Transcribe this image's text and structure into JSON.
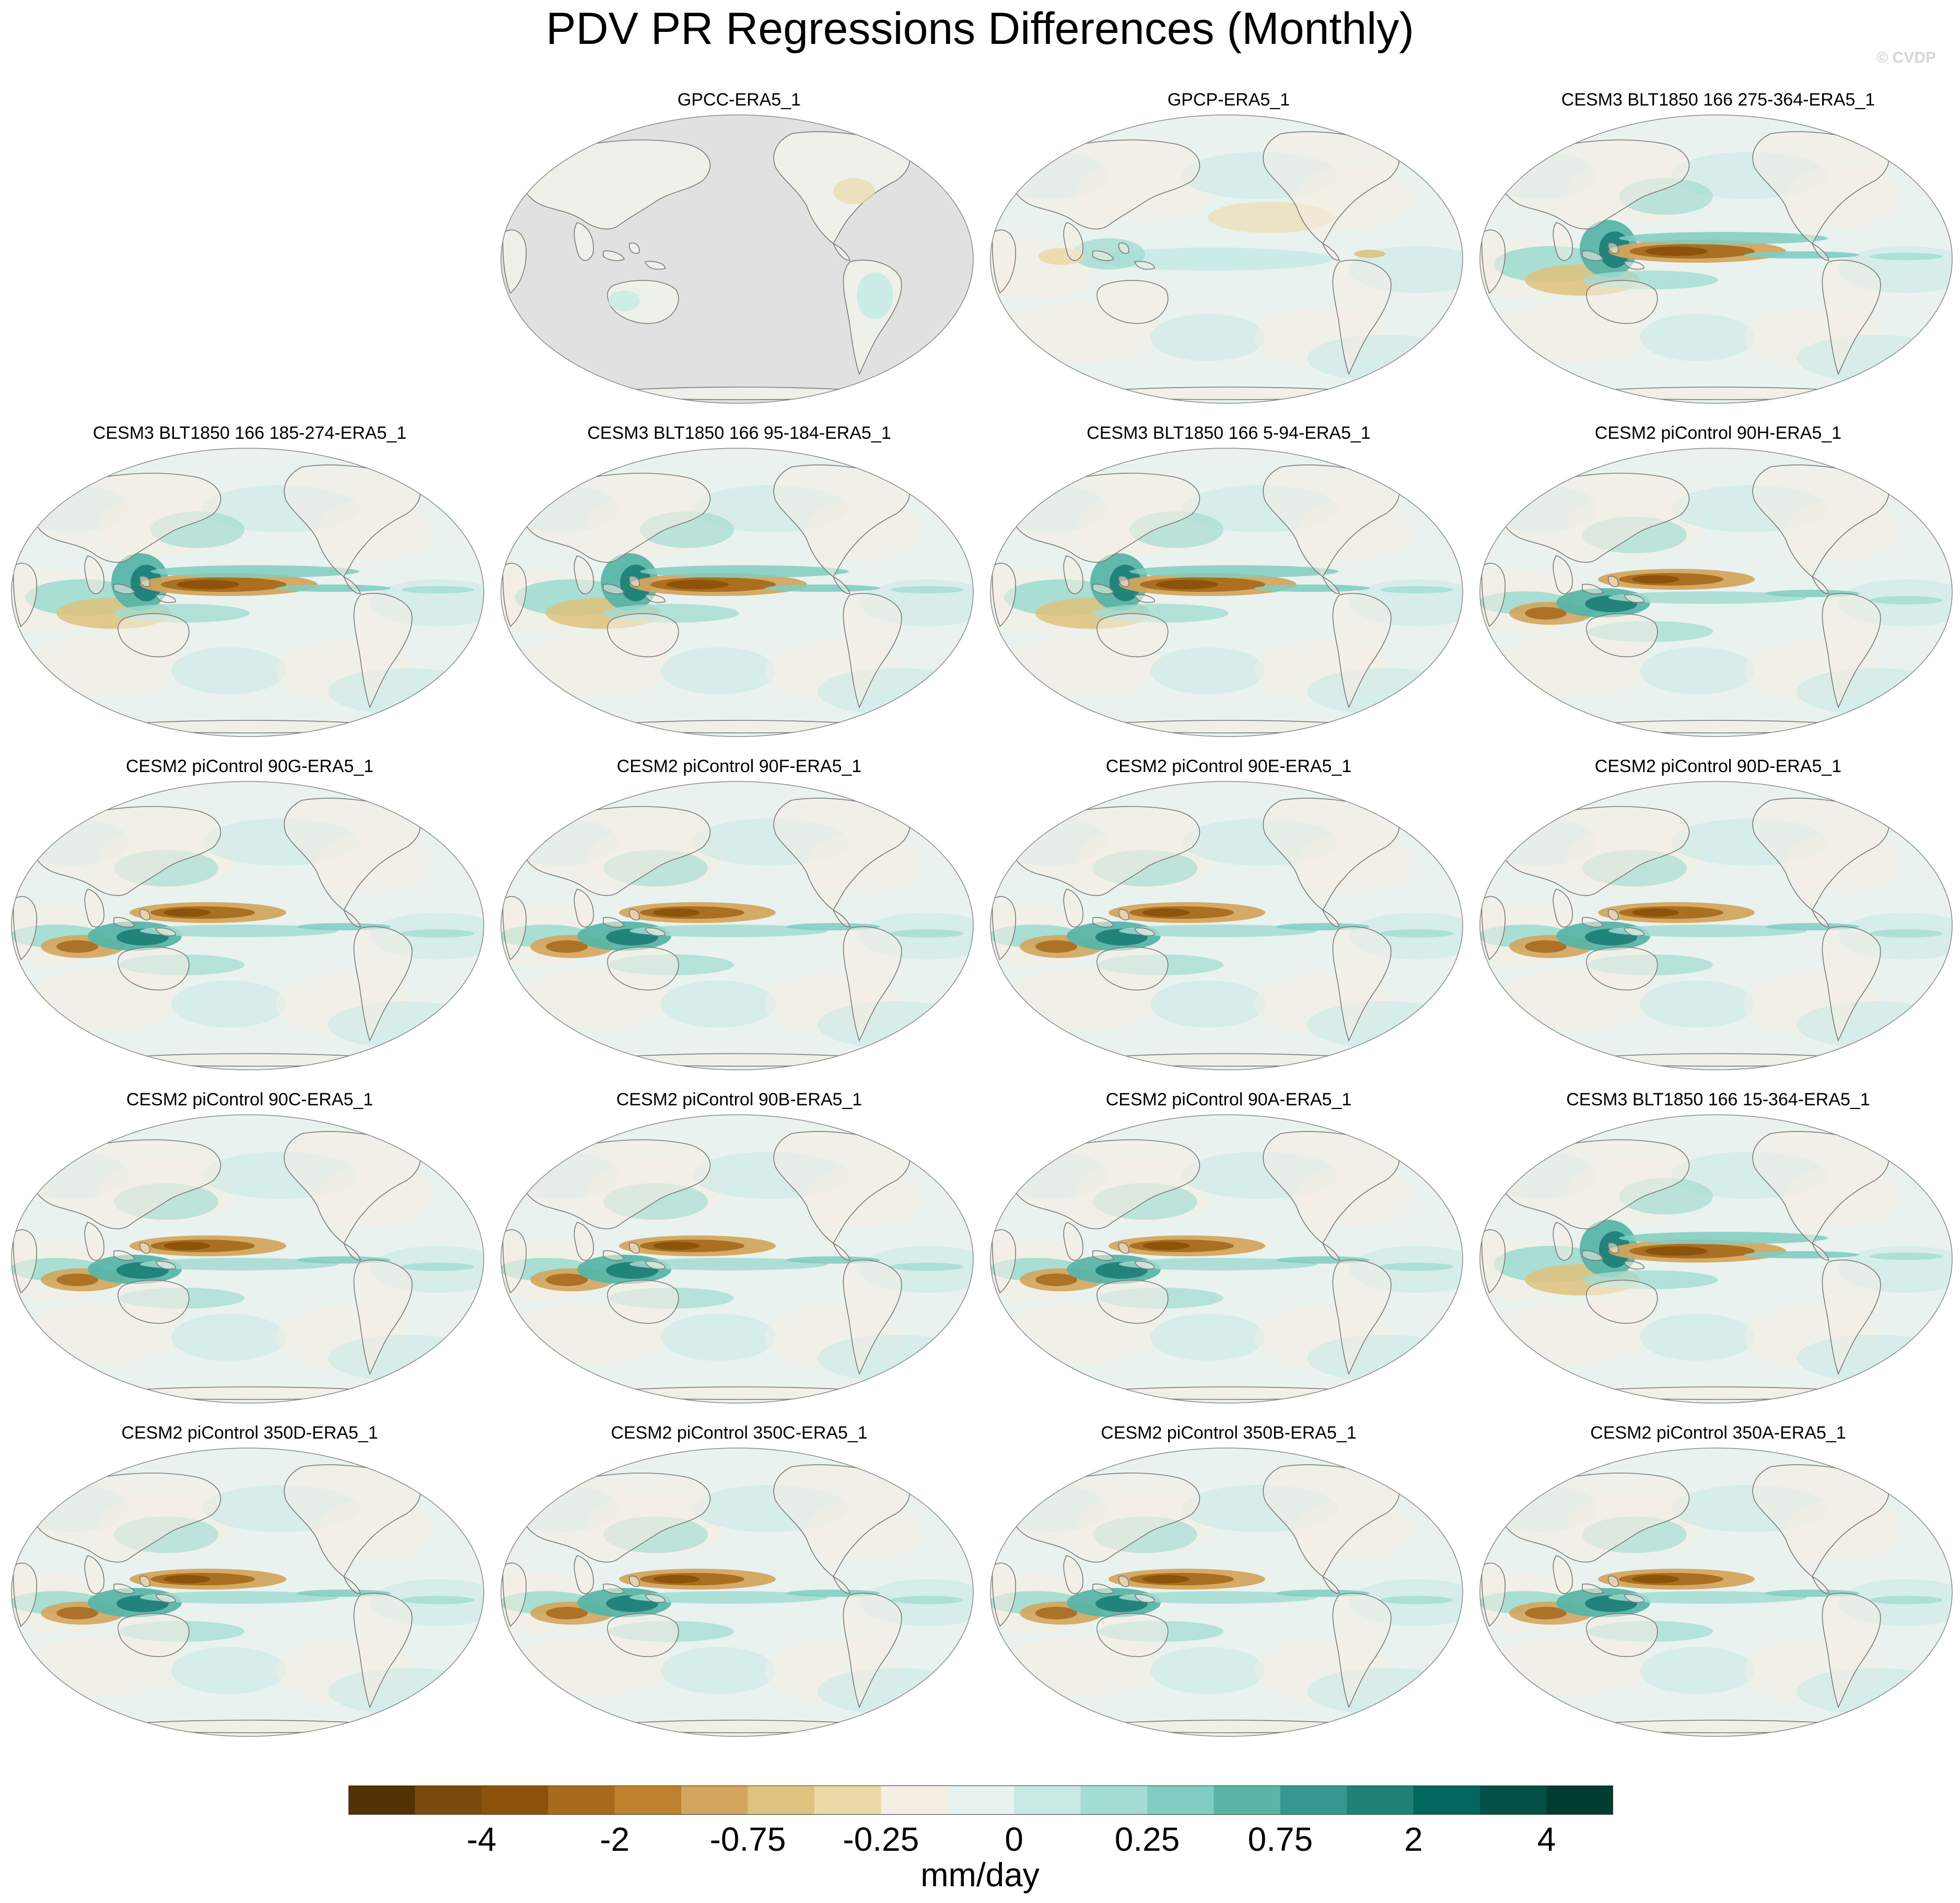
{
  "title": "PDV PR Regressions Differences (Monthly)",
  "watermark": "© CVDP",
  "colors": {
    "ocean_base": "#e9f2ef",
    "land": "#f5efe3",
    "missing": "#e1e1e1",
    "coast": "#7a7a7a"
  },
  "panels": [
    {
      "label": "GPCC-ERA5_1",
      "pattern": "gpcc"
    },
    {
      "label": "GPCP-ERA5_1",
      "pattern": "gpcp"
    },
    {
      "label": "CESM3 BLT1850 166 275-364-ERA5_1",
      "pattern": "cesm3"
    },
    {
      "label": "CESM3 BLT1850 166 185-274-ERA5_1",
      "pattern": "cesm3"
    },
    {
      "label": "CESM3 BLT1850 166 95-184-ERA5_1",
      "pattern": "cesm3"
    },
    {
      "label": "CESM3 BLT1850 166 5-94-ERA5_1",
      "pattern": "cesm3"
    },
    {
      "label": "CESM2 piControl 90H-ERA5_1",
      "pattern": "cesm2"
    },
    {
      "label": "CESM2 piControl 90G-ERA5_1",
      "pattern": "cesm2"
    },
    {
      "label": "CESM2 piControl 90F-ERA5_1",
      "pattern": "cesm2"
    },
    {
      "label": "CESM2 piControl 90E-ERA5_1",
      "pattern": "cesm2"
    },
    {
      "label": "CESM2 piControl 90D-ERA5_1",
      "pattern": "cesm2"
    },
    {
      "label": "CESM2 piControl 90C-ERA5_1",
      "pattern": "cesm2"
    },
    {
      "label": "CESM2 piControl 90B-ERA5_1",
      "pattern": "cesm2"
    },
    {
      "label": "CESM2 piControl 90A-ERA5_1",
      "pattern": "cesm2"
    },
    {
      "label": "CESM3 BLT1850 166 15-364-ERA5_1",
      "pattern": "cesm3"
    },
    {
      "label": "CESM2 piControl 350D-ERA5_1",
      "pattern": "cesm2"
    },
    {
      "label": "CESM2 piControl 350C-ERA5_1",
      "pattern": "cesm2"
    },
    {
      "label": "CESM2 piControl 350B-ERA5_1",
      "pattern": "cesm2"
    },
    {
      "label": "CESM2 piControl 350A-ERA5_1",
      "pattern": "cesm2"
    }
  ],
  "colorbar": {
    "colors": [
      "#543005",
      "#7a4a0c",
      "#8c510a",
      "#a86b1e",
      "#bf812d",
      "#d3a55e",
      "#dfc27d",
      "#ecd9a8",
      "#f5efe3",
      "#e9f2ef",
      "#c7eae5",
      "#a3dcd2",
      "#80cdc1",
      "#5ab4a8",
      "#35978f",
      "#1f8078",
      "#01665e",
      "#014f46",
      "#003c30"
    ],
    "labels": [
      "-4",
      "-2",
      "-0.75",
      "-0.25",
      "0",
      "0.25",
      "0.75",
      "2",
      "4"
    ],
    "units": "mm/day"
  }
}
